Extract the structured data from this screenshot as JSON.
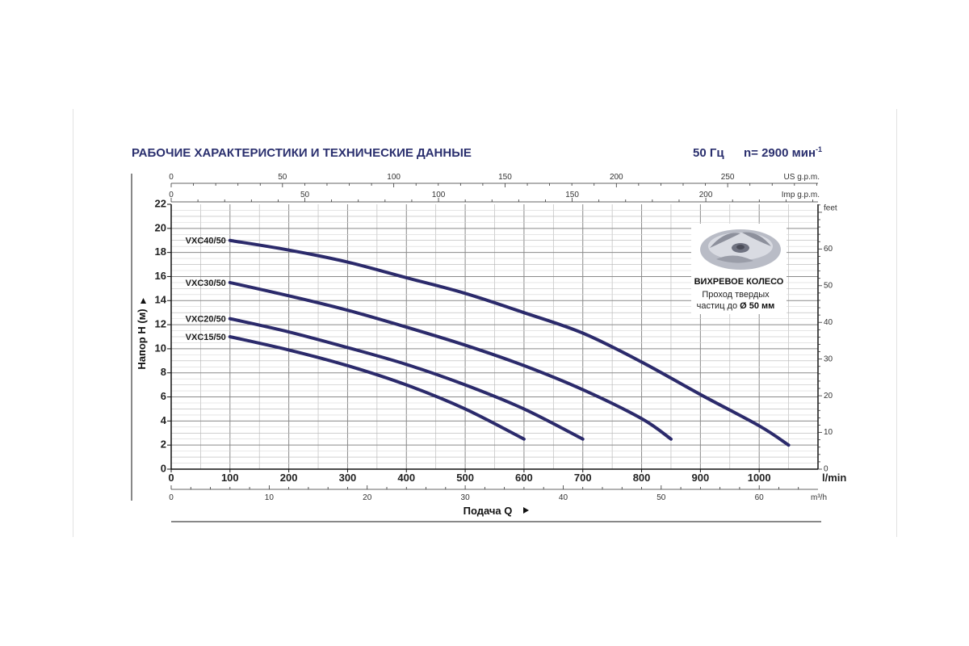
{
  "header": {
    "title": "РАБОЧИЕ ХАРАКТЕРИСТИКИ И ТЕХНИЧЕСКИЕ ДАННЫЕ",
    "frequency": "50 Гц",
    "speed_prefix": "n= 2900 мин",
    "speed_sup": "-1"
  },
  "chart_data": {
    "type": "line",
    "title": "РАБОЧИЕ ХАРАКТЕРИСТИКИ И ТЕХНИЧЕСКИЕ ДАННЫЕ",
    "xlabel": "Подача Q",
    "ylabel": "Напор H (м)",
    "x_unit": "l/min",
    "xlim": [
      0,
      1100
    ],
    "ylim": [
      0,
      22
    ],
    "x_ticks": [
      0,
      100,
      200,
      300,
      400,
      500,
      600,
      700,
      800,
      900,
      1000
    ],
    "y_ticks": [
      0,
      2,
      4,
      6,
      8,
      10,
      12,
      14,
      16,
      18,
      20,
      22
    ],
    "grid": true,
    "secondary_axes": {
      "us_gpm": {
        "unit": "US g.p.m.",
        "ticks": [
          0,
          50,
          100,
          150,
          200,
          250
        ]
      },
      "imp_gpm": {
        "unit": "Imp g.p.m.",
        "ticks": [
          0,
          50,
          100,
          150,
          200
        ]
      },
      "m3h": {
        "unit": "m³/h",
        "ticks": [
          0,
          10,
          20,
          30,
          40,
          50,
          60
        ]
      },
      "feet": {
        "unit": "feet",
        "ticks": [
          0,
          10,
          20,
          30,
          40,
          50,
          60
        ]
      }
    },
    "series": [
      {
        "name": "VXC40/50",
        "x": [
          100,
          200,
          300,
          400,
          500,
          600,
          700,
          800,
          900,
          1000,
          1050
        ],
        "y": [
          19.0,
          18.2,
          17.2,
          15.9,
          14.6,
          13.0,
          11.3,
          8.9,
          6.2,
          3.6,
          2.0
        ]
      },
      {
        "name": "VXC30/50",
        "x": [
          100,
          200,
          300,
          400,
          500,
          600,
          700,
          800,
          850
        ],
        "y": [
          15.5,
          14.4,
          13.2,
          11.8,
          10.3,
          8.6,
          6.6,
          4.2,
          2.5
        ]
      },
      {
        "name": "VXC20/50",
        "x": [
          100,
          200,
          300,
          400,
          500,
          600,
          700
        ],
        "y": [
          12.5,
          11.4,
          10.1,
          8.7,
          7.0,
          5.0,
          2.5
        ]
      },
      {
        "name": "VXC15/50",
        "x": [
          100,
          200,
          300,
          400,
          500,
          600
        ],
        "y": [
          11.0,
          9.9,
          8.6,
          7.0,
          5.0,
          2.5
        ]
      }
    ],
    "line_color": "#2b2a6b"
  },
  "impeller_box": {
    "title": "ВИХРЕВОЕ КОЛЕСО",
    "line1": "Проход твердых",
    "line2_prefix": "частиц до ",
    "line2_bold": "Ø 50 мм"
  }
}
